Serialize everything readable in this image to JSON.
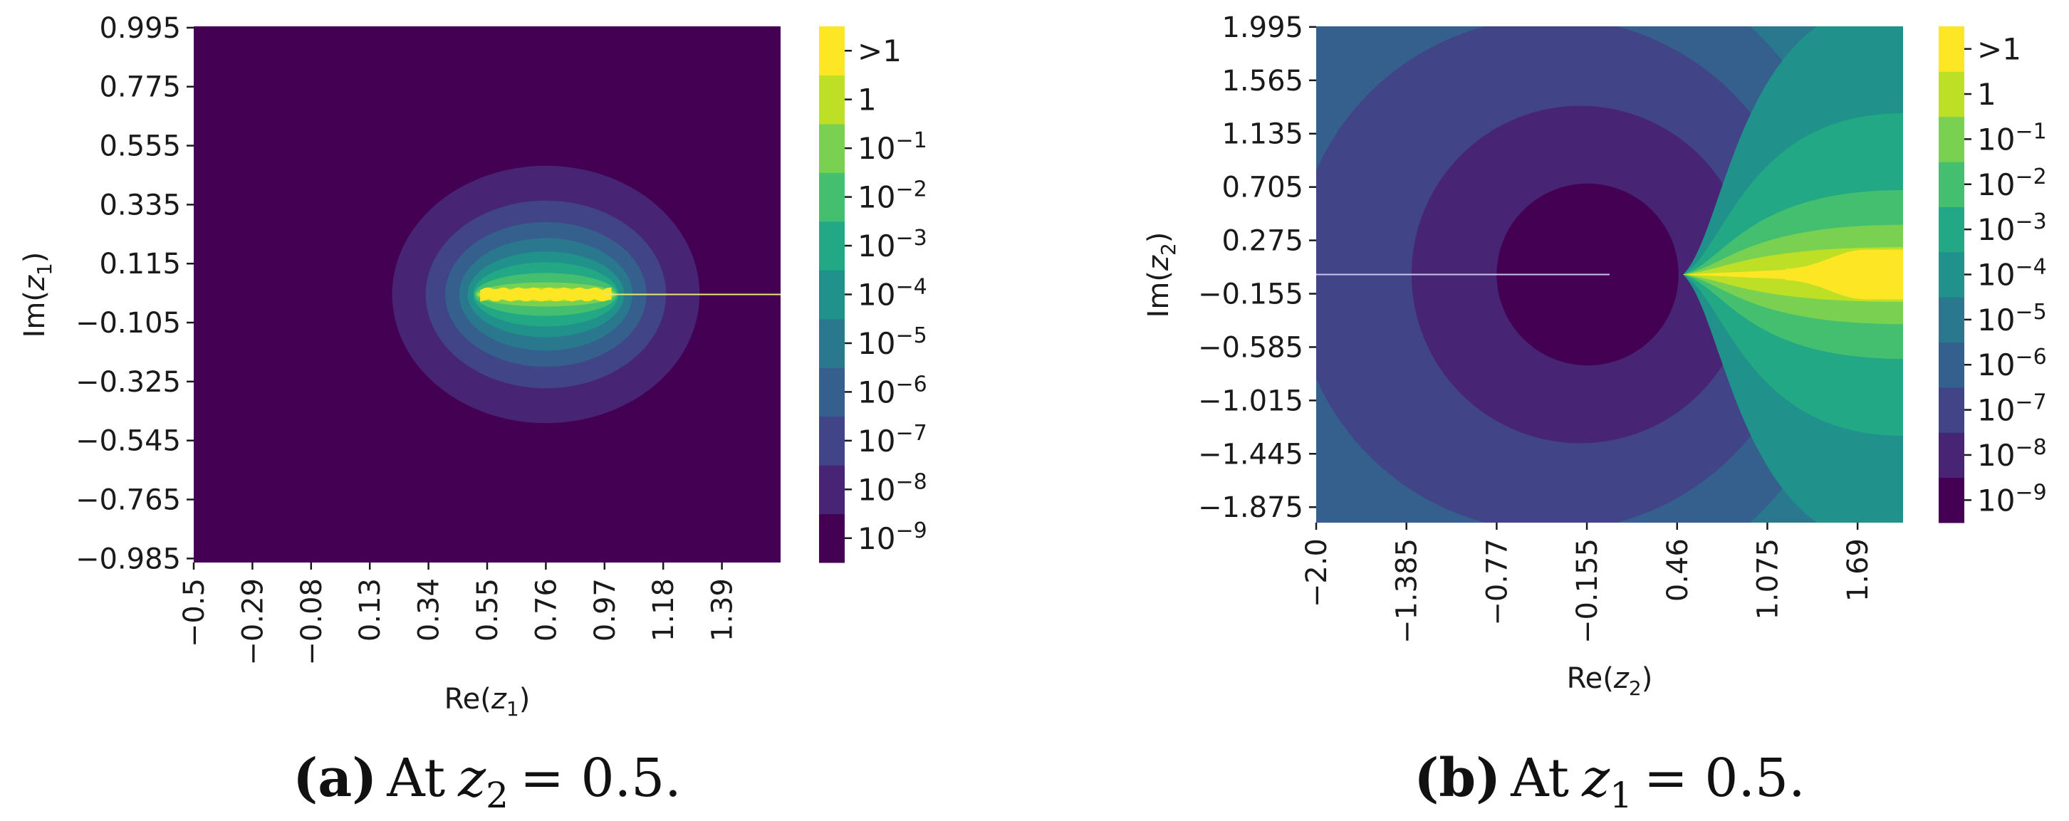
{
  "colormap": {
    "name": "viridis",
    "levels": [
      "#440154",
      "#482475",
      "#414487",
      "#355f8d",
      "#2a788e",
      "#21918c",
      "#22a884",
      "#44bf70",
      "#7ad151",
      "#bddf26",
      "#fde725"
    ],
    "level_labels": [
      "10^-9",
      "10^-8",
      "10^-7",
      "10^-6",
      "10^-5",
      "10^-4",
      "10^-3",
      "10^-2",
      "10^-1",
      "1",
      ">1"
    ]
  },
  "chart_data": [
    {
      "type": "heatmap",
      "panel": "a",
      "title": "",
      "xlabel": "Re(z_1)",
      "ylabel": "Im(z_1)",
      "xlim": [
        -0.5,
        1.6
      ],
      "ylim": [
        -1.0,
        1.0
      ],
      "x_ticks": [
        -0.5,
        -0.29,
        -0.08,
        0.13,
        0.34,
        0.55,
        0.76,
        0.97,
        1.18,
        1.39
      ],
      "x_tick_labels": [
        "−0.5",
        "−0.29",
        "−0.08",
        "0.13",
        "0.34",
        "0.55",
        "0.76",
        "0.97",
        "1.18",
        "1.39"
      ],
      "y_ticks": [
        0.995,
        0.775,
        0.555,
        0.335,
        0.115,
        -0.105,
        -0.325,
        -0.545,
        -0.765,
        -0.985
      ],
      "y_tick_labels": [
        "0.995",
        "0.775",
        "0.555",
        "0.335",
        "0.115",
        "−0.105",
        "−0.325",
        "−0.545",
        "−0.765",
        "−0.985"
      ],
      "colorbar_labels": [
        "10^-9",
        "10^-8",
        "10^-7",
        "10^-6",
        "10^-5",
        "10^-4",
        "10^-3",
        "10^-2",
        "10^-1",
        "1",
        ">1"
      ],
      "background_level": 0,
      "contours": [
        {
          "level": 1,
          "cx": 0.76,
          "cy": 0.0,
          "rx": 0.55,
          "ry": 0.48
        },
        {
          "level": 2,
          "cx": 0.76,
          "cy": 0.0,
          "rx": 0.43,
          "ry": 0.35
        },
        {
          "level": 3,
          "cx": 0.76,
          "cy": 0.0,
          "rx": 0.36,
          "ry": 0.27
        },
        {
          "level": 4,
          "cx": 0.76,
          "cy": 0.0,
          "rx": 0.31,
          "ry": 0.21
        },
        {
          "level": 5,
          "cx": 0.76,
          "cy": 0.0,
          "rx": 0.28,
          "ry": 0.16
        },
        {
          "level": 6,
          "cx": 0.76,
          "cy": 0.0,
          "rx": 0.26,
          "ry": 0.12
        },
        {
          "level": 7,
          "cx": 0.76,
          "cy": 0.0,
          "rx": 0.255,
          "ry": 0.08
        },
        {
          "level": 8,
          "cx": 0.76,
          "cy": 0.0,
          "rx": 0.25,
          "ry": 0.045
        },
        {
          "level": 9,
          "cx": 0.76,
          "cy": 0.0,
          "rx": 0.245,
          "ry": 0.025
        },
        {
          "level": 10,
          "cx": 0.76,
          "cy": 0.0,
          "rx": 0.235,
          "ry": 0.012
        }
      ],
      "branch_cut": {
        "from": [
          0.97,
          0.0
        ],
        "to": [
          1.6,
          0.0
        ],
        "color": "#e6e87a"
      },
      "caption_label": "(a)",
      "caption_text": "At",
      "caption_var": "z",
      "caption_sub": "2",
      "caption_rhs": "= 0.5."
    },
    {
      "type": "heatmap",
      "panel": "b",
      "title": "",
      "xlabel": "Re(z_2)",
      "ylabel": "Im(z_2)",
      "xlim": [
        -2.0,
        2.0
      ],
      "ylim": [
        -2.0,
        2.0
      ],
      "x_ticks": [
        -2.0,
        -1.385,
        -0.77,
        -0.155,
        0.46,
        1.075,
        1.69
      ],
      "x_tick_labels": [
        "−2.0",
        "−1.385",
        "−0.77",
        "−0.155",
        "0.46",
        "1.075",
        "1.69"
      ],
      "y_ticks": [
        1.995,
        1.565,
        1.135,
        0.705,
        0.275,
        -0.155,
        -0.585,
        -1.015,
        -1.445,
        -1.875
      ],
      "y_tick_labels": [
        "1.995",
        "1.565",
        "1.135",
        "0.705",
        "0.275",
        "−0.155",
        "−0.585",
        "−1.015",
        "−1.445",
        "−1.875"
      ],
      "colorbar_labels": [
        "10^-9",
        "10^-8",
        "10^-7",
        "10^-6",
        "10^-5",
        "10^-4",
        "10^-3",
        "10^-2",
        "10^-1",
        "1",
        ">1"
      ],
      "singular_point": [
        0.5,
        0.0
      ],
      "circles": [
        {
          "level": 4,
          "cx": 0.5,
          "cy": 1.6,
          "r": 1.6
        },
        {
          "level": 4,
          "cx": 0.5,
          "cy": -1.6,
          "r": 1.6
        },
        {
          "level": 3,
          "cx": -0.6,
          "cy": 0.0,
          "r": 2.3
        },
        {
          "level": 2,
          "cx": -0.4,
          "cy": 0.0,
          "r": 1.75
        },
        {
          "level": 1,
          "cx": -0.2,
          "cy": 0.0,
          "r": 1.15
        },
        {
          "level": 0,
          "cx": -0.15,
          "cy": 0.0,
          "r": 0.62
        }
      ],
      "right_lobes": [
        {
          "level": 5,
          "cx": 1.95,
          "cy": 0.0,
          "rx": 1.45,
          "ry": 2.2
        },
        {
          "level": 6,
          "cx": 2.0,
          "cy": 0.0,
          "rx": 1.5,
          "ry": 1.3
        },
        {
          "level": 7,
          "cx": 2.0,
          "cy": 0.0,
          "rx": 1.5,
          "ry": 0.68
        },
        {
          "level": 8,
          "cx": 2.0,
          "cy": 0.0,
          "rx": 1.5,
          "ry": 0.4
        },
        {
          "level": 9,
          "cx": 2.0,
          "cy": 0.0,
          "rx": 1.5,
          "ry": 0.22
        },
        {
          "level": 10,
          "cx": 2.0,
          "cy": 0.0,
          "rx": 0.35,
          "ry": 0.2
        }
      ],
      "branch_cut": {
        "from": [
          -2.0,
          0.0
        ],
        "to": [
          0.0,
          0.0
        ],
        "color": "#c9c4e6"
      },
      "caption_label": "(b)",
      "caption_text": "At",
      "caption_var": "z",
      "caption_sub": "1",
      "caption_rhs": "= 0.5."
    }
  ]
}
